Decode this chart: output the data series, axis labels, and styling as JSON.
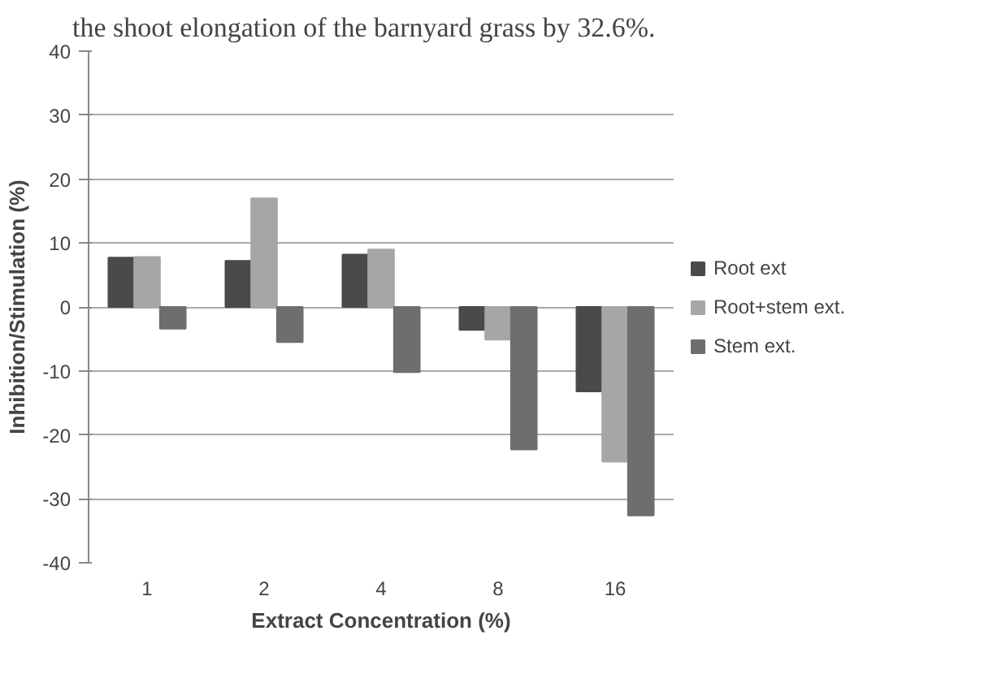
{
  "chart_data": {
    "type": "bar",
    "annotations": [
      "the shoot elongation of the barnyard grass by 32.6%."
    ],
    "xlabel": "Extract Concentration (%)",
    "ylabel": "Inhibition/Stimulation (%)",
    "categories": [
      "1",
      "2",
      "4",
      "8",
      "16"
    ],
    "series": [
      {
        "name": "Root ext",
        "color": "#4a4a4a",
        "values": [
          7.7,
          7.2,
          8.2,
          -3.6,
          -13.2
        ]
      },
      {
        "name": "Root+stem ext.",
        "color": "#a6a6a6",
        "values": [
          7.8,
          17,
          9,
          -5.1,
          -24.2
        ]
      },
      {
        "name": "Stem ext.",
        "color": "#6e6e6e",
        "values": [
          -3.4,
          -5.5,
          -10.2,
          -22.3,
          -32.6
        ]
      }
    ],
    "ylim": [
      -40,
      40
    ],
    "yticks": [
      -40,
      -30,
      -20,
      -10,
      0,
      10,
      20,
      30,
      40
    ],
    "grid": "y",
    "legend": "right"
  }
}
